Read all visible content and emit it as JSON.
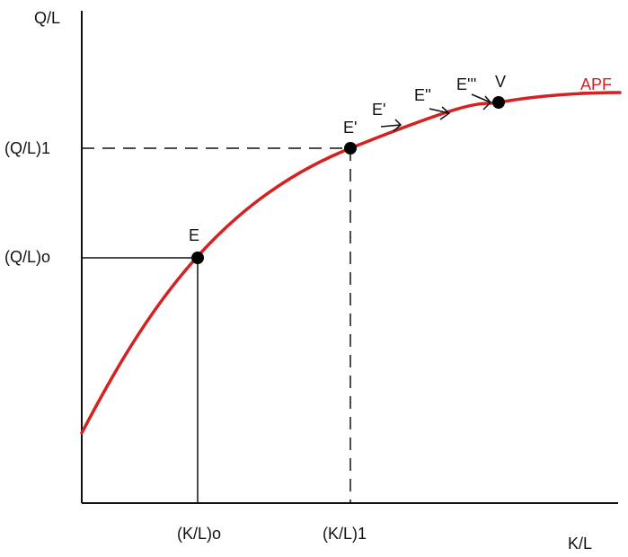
{
  "axes": {
    "y_label": "Q/L",
    "x_label": "K/L"
  },
  "y_ticks": {
    "q_l_1": "(Q/L)1",
    "q_l_o": "(Q/L)o"
  },
  "x_ticks": {
    "k_l_o": "(K/L)o",
    "k_l_1": "(K/L)1"
  },
  "curve": {
    "label": "APF",
    "color": "#d42222"
  },
  "points": {
    "e": "E",
    "e1": "E'",
    "v": "V"
  },
  "path_labels": {
    "e_prime": "E'",
    "e_double": "E''",
    "e_triple": "E'''"
  },
  "colors": {
    "axis": "#111111",
    "curve": "#d42222",
    "background": "#ffffff"
  }
}
